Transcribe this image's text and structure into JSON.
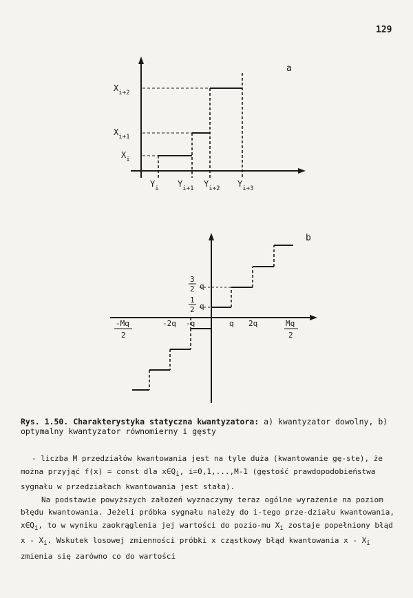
{
  "page_number": "129",
  "figure_a": {
    "label": "a",
    "y_labels": [
      {
        "text": "X",
        "sub": "i+2"
      },
      {
        "text": "X",
        "sub": "i+1"
      },
      {
        "text": "X",
        "sub": "i"
      }
    ],
    "x_labels": [
      {
        "text": "Y",
        "sub": "i"
      },
      {
        "text": "Y",
        "sub": "i+1"
      },
      {
        "text": "Y",
        "sub": "i+2"
      },
      {
        "text": "Y",
        "sub": "i+3"
      }
    ]
  },
  "figure_b": {
    "label": "b",
    "x_ticks": [
      "q",
      "2q",
      "-2q",
      "-q"
    ],
    "x_edge_pos": {
      "num": "Mq",
      "den": "2"
    },
    "x_edge_neg": {
      "num": "-Mq",
      "den": "2"
    },
    "y_ticks": [
      {
        "num": "3",
        "den": "2",
        "unit": "q"
      },
      {
        "num": "1",
        "den": "2",
        "unit": "q"
      }
    ]
  },
  "caption": {
    "label": "Rys. 1.50.",
    "title": "Charakterystyka statyczna kwantyzatora:",
    "parts": "a) kwantyzator dowolny, b) optymalny kwantyzator równomierny i gęsty"
  },
  "body": {
    "p1_a": "- liczba M przedziałów kwantowania jest na tyle duża (kwantowanie gę-ste), że można przyjąć f(x) = const dla x∈Q",
    "p1_sub": "i",
    "p1_b": ", i=0,1,...,M-1 (gęstość prawdopodobieństwa sygnału w przedziałach kwantowania jest stała).",
    "p2_a": "Na podstawie powyższych założeń wyznaczymy teraz ogólne wyrażenie na poziom błędu kwantowania. Jeżeli próbka sygnału należy do i-tego prze-działu kwantowania, x∈Q",
    "p2_sub1": "i",
    "p2_b": ", to w wyniku zaokrąglenia jej wartości do pozio-mu X",
    "p2_sub2": "i",
    "p2_c": " zostaje popełniony błąd x - X",
    "p2_sub3": "i",
    "p2_d": ". Wskutek losowej zmienności próbki x cząstkowy błąd kwantowania x - X",
    "p2_sub4": "i",
    "p2_e": " zmienia się zarówno co do wartości"
  }
}
